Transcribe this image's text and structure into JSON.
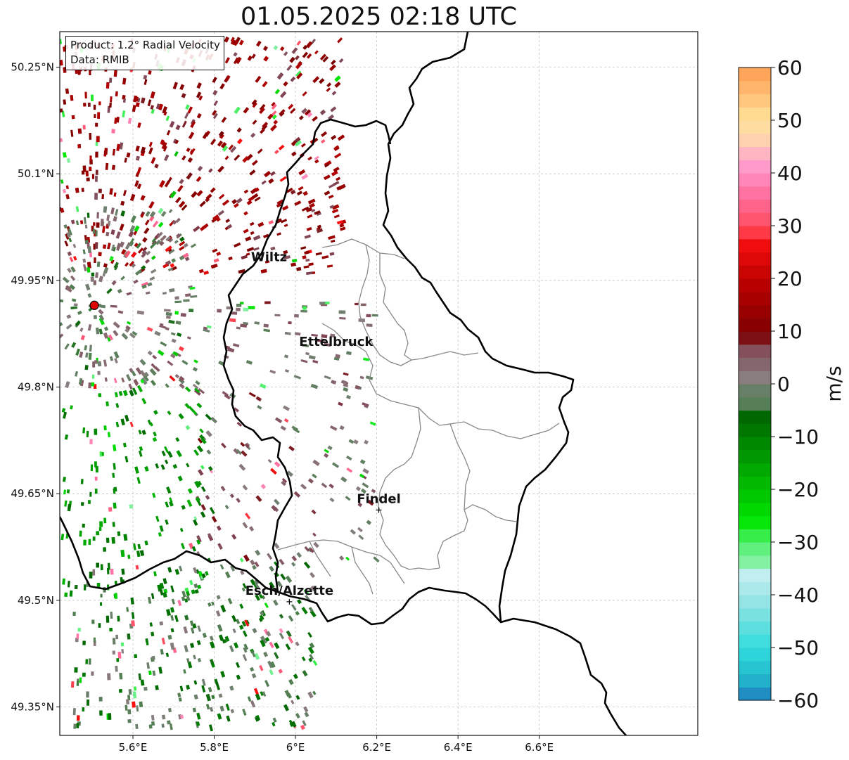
{
  "title": "01.05.2025 02:18 UTC",
  "info_box": {
    "product": "Product: 1.2° Radial Velocity",
    "data": "Data: RMIB"
  },
  "map": {
    "lon_range": [
      5.42,
      6.99
    ],
    "lat_range": [
      49.31,
      50.3
    ],
    "radar_site": {
      "lon": 5.505,
      "lat": 49.915,
      "marker_color": "#e00000"
    },
    "lat_ticks": [
      "49.35°N",
      "49.5°N",
      "49.65°N",
      "49.8°N",
      "49.95°N",
      "50.1°N",
      "50.25°N"
    ],
    "lat_tick_values": [
      49.35,
      49.5,
      49.65,
      49.8,
      49.95,
      50.1,
      50.25
    ],
    "lon_ticks": [
      "5.6°E",
      "5.8°E",
      "6°E",
      "6.2°E",
      "6.4°E",
      "6.6°E"
    ],
    "lon_tick_values": [
      5.6,
      5.8,
      6.0,
      6.2,
      6.4,
      6.6
    ],
    "gridlines": true,
    "cities": [
      {
        "name": "Wiltz",
        "lon": 5.935,
        "lat": 49.967
      },
      {
        "name": "Ettelbruck",
        "lon": 6.1,
        "lat": 49.848
      },
      {
        "name": "Findel",
        "lon": 6.205,
        "lat": 49.627,
        "marker": true
      },
      {
        "name": "Esch/Alzette",
        "lon": 5.985,
        "lat": 49.498,
        "marker": true
      }
    ]
  },
  "colorbar": {
    "label": "m/s",
    "min": -60,
    "max": 60,
    "ticks": [
      "60",
      "50",
      "40",
      "30",
      "20",
      "10",
      "0",
      "−10",
      "−20",
      "−30",
      "−40",
      "−50",
      "−60"
    ],
    "tick_values": [
      60,
      50,
      40,
      30,
      20,
      10,
      0,
      -10,
      -20,
      -30,
      -40,
      -50,
      -60
    ],
    "color_stops": [
      {
        "v": -60,
        "c": "#1f7bbf"
      },
      {
        "v": -56,
        "c": "#22b5cc"
      },
      {
        "v": -50,
        "c": "#30dcdc"
      },
      {
        "v": -42,
        "c": "#8fe3e3"
      },
      {
        "v": -36,
        "c": "#c2eef2"
      },
      {
        "v": -34,
        "c": "#86f0a6"
      },
      {
        "v": -30,
        "c": "#4ff06a"
      },
      {
        "v": -26,
        "c": "#00e600"
      },
      {
        "v": -18,
        "c": "#00b400"
      },
      {
        "v": -6,
        "c": "#006600"
      },
      {
        "v": -5,
        "c": "#4f7f4f"
      },
      {
        "v": 0,
        "c": "#6f7f6f"
      },
      {
        "v": 1,
        "c": "#8a7f7f"
      },
      {
        "v": 8,
        "c": "#804050"
      },
      {
        "v": 9,
        "c": "#7a0000"
      },
      {
        "v": 20,
        "c": "#c00000"
      },
      {
        "v": 28,
        "c": "#ff1010"
      },
      {
        "v": 29,
        "c": "#ff4858"
      },
      {
        "v": 36,
        "c": "#ff70a0"
      },
      {
        "v": 42,
        "c": "#ffa0d0"
      },
      {
        "v": 46,
        "c": "#ffd0b0"
      },
      {
        "v": 50,
        "c": "#ffe39a"
      },
      {
        "v": 60,
        "c": "#ff9b50"
      }
    ]
  },
  "echo_regions": [
    {
      "name": "north-outbound",
      "lon": [
        5.42,
        6.12
      ],
      "lat": [
        49.96,
        50.29
      ],
      "v_mean": 12,
      "density": 0.55
    },
    {
      "name": "radar-near",
      "lon": [
        5.42,
        5.75
      ],
      "lat": [
        49.8,
        50.05
      ],
      "v_mean": 0,
      "density": 0.7
    },
    {
      "name": "central-mixed",
      "lon": [
        5.75,
        6.2
      ],
      "lat": [
        49.55,
        49.92
      ],
      "v_mean": 3,
      "density": 0.3
    },
    {
      "name": "west-inbound",
      "lon": [
        5.42,
        5.8
      ],
      "lat": [
        49.5,
        49.8
      ],
      "v_mean": -12,
      "density": 0.35
    },
    {
      "name": "southwest-inbound",
      "lon": [
        5.45,
        6.05
      ],
      "lat": [
        49.32,
        49.55
      ],
      "v_mean": -4,
      "density": 0.55
    }
  ]
}
